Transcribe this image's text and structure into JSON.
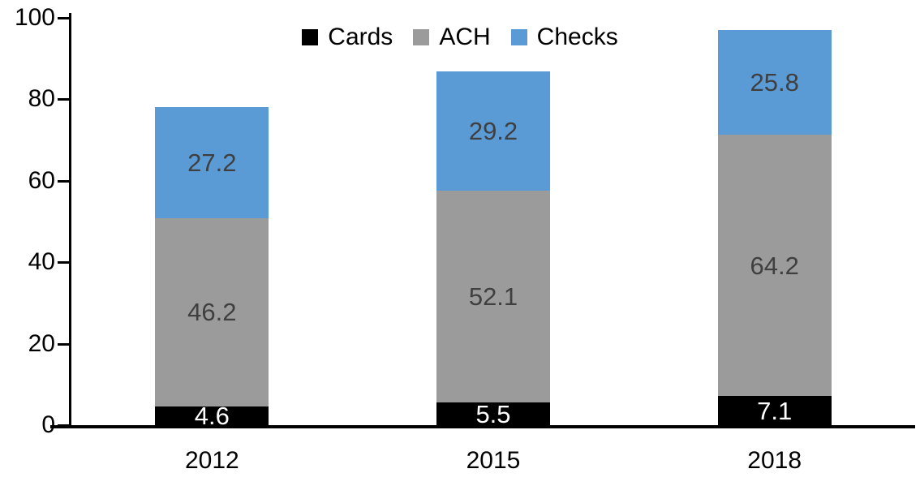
{
  "chart_data": {
    "type": "bar",
    "stacked": true,
    "title": "",
    "xlabel": "",
    "ylabel": "",
    "categories": [
      "2012",
      "2015",
      "2018"
    ],
    "series": [
      {
        "name": "Cards",
        "color": "#000000",
        "label_color": "#ffffff",
        "values": [
          4.6,
          5.5,
          7.1
        ]
      },
      {
        "name": "ACH",
        "color": "#9b9b9b",
        "label_color": "#3f3f3f",
        "values": [
          46.2,
          52.1,
          64.2
        ]
      },
      {
        "name": "Checks",
        "color": "#5b9bd5",
        "label_color": "#3f3f3f",
        "values": [
          27.2,
          29.2,
          25.8
        ]
      }
    ],
    "totals": [
      78.0,
      86.8,
      97.1
    ],
    "ylim": [
      0,
      100
    ],
    "yticks": [
      0,
      20,
      40,
      60,
      80,
      100
    ],
    "grid": false,
    "legend_position": "top-center",
    "axis_color": "#000000",
    "data_labels": true
  }
}
